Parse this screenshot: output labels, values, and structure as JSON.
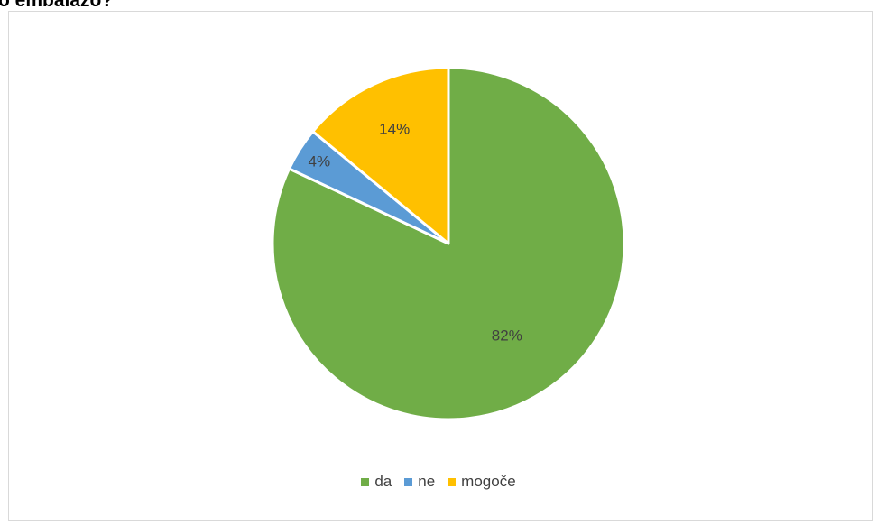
{
  "page": {
    "clipped_title": "o embalažo?"
  },
  "colors": {
    "da": "#70ad47",
    "ne": "#5b9bd5",
    "mogoce": "#ffc000",
    "label_text": "#404040",
    "border": "#d9d9d9"
  },
  "chart_data": {
    "type": "pie",
    "categories": [
      "da",
      "ne",
      "mogoče"
    ],
    "values": [
      82,
      4,
      14
    ],
    "data_labels": [
      "82%",
      "4%",
      "14%"
    ],
    "legend_position": "bottom",
    "start_angle": "12 o'clock, clockwise"
  }
}
